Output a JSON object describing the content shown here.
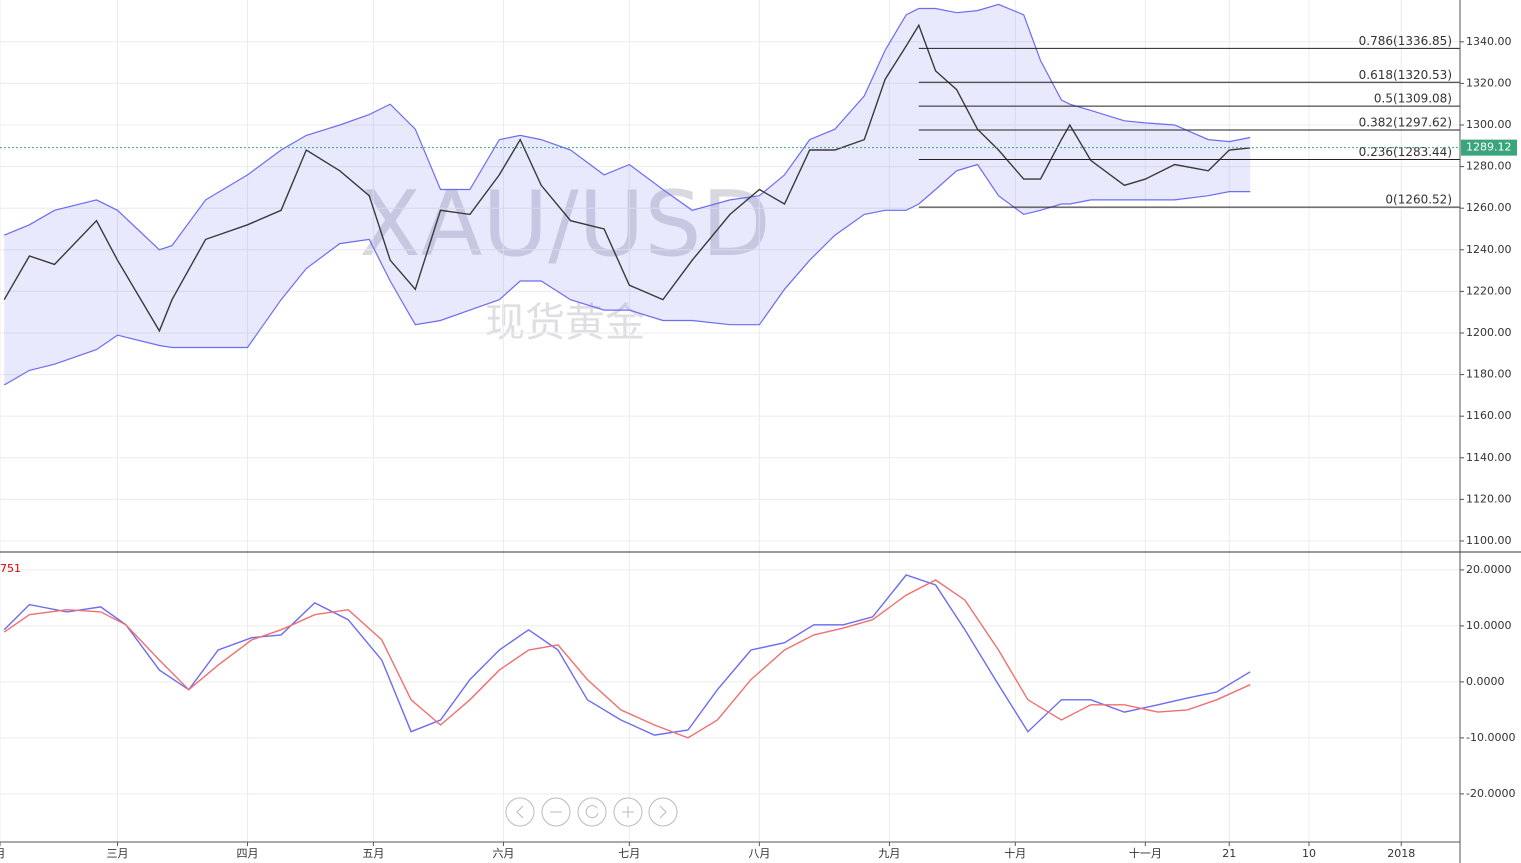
{
  "watermark": {
    "symbol": "XAU/USD",
    "name": "现货黄金"
  },
  "chart_data": [
    {
      "type": "line",
      "x": [
        33,
        39,
        45,
        55,
        60,
        70,
        73,
        81,
        91,
        99,
        105,
        113,
        120,
        125,
        131,
        137,
        144,
        151,
        156,
        161,
        168,
        176,
        182,
        190,
        197,
        206,
        213,
        219,
        225,
        231,
        238,
        243,
        248,
        251,
        255,
        260,
        265,
        270,
        276,
        280,
        285,
        287,
        292,
        300,
        305,
        312,
        320,
        325,
        330
      ],
      "xlim": [
        32,
        380
      ],
      "ylim": [
        1094.7,
        1360.1
      ],
      "yticks": [
        {
          "value": 1100,
          "label": "1100.00"
        },
        {
          "value": 1120,
          "label": "1120.00"
        },
        {
          "value": 1140,
          "label": "1140.00"
        },
        {
          "value": 1160,
          "label": "1160.00"
        },
        {
          "value": 1180,
          "label": "1180.00"
        },
        {
          "value": 1200,
          "label": "1200.00"
        },
        {
          "value": 1220,
          "label": "1220.00"
        },
        {
          "value": 1240,
          "label": "1240.00"
        },
        {
          "value": 1260,
          "label": "1260.00"
        },
        {
          "value": 1280,
          "label": "1280.00"
        },
        {
          "value": 1300,
          "label": "1300.00"
        },
        {
          "value": 1320,
          "label": "1320.00"
        },
        {
          "value": 1340,
          "label": "1340.00"
        }
      ],
      "grid": true,
      "series": [
        {
          "color": "#3a3a3a",
          "values": [
            1216,
            1237,
            1233,
            1254,
            1235,
            1201,
            1216,
            1245,
            1252,
            1259,
            1288,
            1278,
            1266,
            1235,
            1221,
            1259,
            1257,
            1276,
            1293,
            1271,
            1254,
            1250,
            1223,
            1216,
            1235,
            1257,
            1269,
            1262,
            1288,
            1288,
            1293,
            1322,
            1338,
            1348,
            1326,
            1317,
            1298,
            1288,
            1274,
            1274,
            1293,
            1300,
            1283,
            1271,
            1274,
            1281,
            1278,
            1288,
            1289
          ]
        }
      ],
      "bands": {
        "color": "#6c6cf2",
        "upper": [
          1247,
          1252,
          1259,
          1264,
          1259,
          1240,
          1242,
          1264,
          1276,
          1288,
          1295,
          1300,
          1305,
          1310,
          1298,
          1269,
          1269,
          1293,
          1295,
          1293,
          1288,
          1276,
          1281,
          1269,
          1259,
          1264,
          1266,
          1276,
          1293,
          1298,
          1314,
          1336,
          1353,
          1356,
          1356,
          1354,
          1355,
          1358,
          1353,
          1331,
          1312,
          1310,
          1307,
          1302,
          1301,
          1300,
          1293,
          1292,
          1294
        ],
        "lower": [
          1175,
          1182,
          1185,
          1192,
          1199,
          1194,
          1193,
          1193,
          1193,
          1216,
          1231,
          1243,
          1245,
          1225,
          1204,
          1206,
          1211,
          1216,
          1225,
          1225,
          1216,
          1211,
          1211,
          1206,
          1206,
          1204,
          1204,
          1221,
          1235,
          1247,
          1257,
          1259,
          1259,
          1262,
          1269,
          1278,
          1281,
          1266,
          1257,
          1259,
          1262,
          1262,
          1264,
          1264,
          1264,
          1264,
          1266,
          1268,
          1268
        ]
      },
      "levels": [
        {
          "value": 1336.85,
          "label": "0.786(1336.85)"
        },
        {
          "value": 1320.53,
          "label": "0.618(1320.53)"
        },
        {
          "value": 1309.08,
          "label": "0.5(1309.08)"
        },
        {
          "value": 1297.62,
          "label": "0.382(1297.62)"
        },
        {
          "value": 1283.44,
          "label": "0.236(1283.44)"
        },
        {
          "value": 1260.52,
          "label": "0(1260.52)"
        }
      ],
      "last_price": 1289.12,
      "last_price_color": "#3aa57a"
    },
    {
      "type": "line",
      "label": "751",
      "x": [
        33,
        39,
        48,
        56,
        62,
        70,
        77,
        84,
        92,
        99,
        107,
        115,
        123,
        130,
        137,
        144,
        151,
        158,
        165,
        172,
        180,
        188,
        196,
        203,
        211,
        219,
        226,
        233,
        240,
        248,
        255,
        262,
        270,
        277,
        285,
        292,
        300,
        308,
        315,
        322,
        330
      ],
      "xlim": [
        32,
        380
      ],
      "xticks": [
        {
          "value": 32,
          "label": "月"
        },
        {
          "value": 60,
          "label": "三月"
        },
        {
          "value": 91,
          "label": "四月"
        },
        {
          "value": 121,
          "label": "五月"
        },
        {
          "value": 152,
          "label": "六月"
        },
        {
          "value": 182,
          "label": "七月"
        },
        {
          "value": 213,
          "label": "八月"
        },
        {
          "value": 244,
          "label": "九月"
        },
        {
          "value": 274,
          "label": "十月"
        },
        {
          "value": 305,
          "label": "十一月"
        },
        {
          "value": 325,
          "label": "21"
        },
        {
          "value": 344,
          "label": "10"
        },
        {
          "value": 366,
          "label": "2018"
        }
      ],
      "ylim": [
        -28.6,
        23.2
      ],
      "yticks": [
        {
          "value": -20,
          "label": "-20.0000"
        },
        {
          "value": -10,
          "label": "-10.0000"
        },
        {
          "value": 0,
          "label": "0.0000"
        },
        {
          "value": 10,
          "label": "10.0000"
        },
        {
          "value": 20,
          "label": "20.0000"
        }
      ],
      "grid": true,
      "series": [
        {
          "color": "#6c6cf2",
          "values": [
            9.3,
            13.8,
            12.5,
            13.4,
            10.2,
            2.1,
            -1.4,
            5.7,
            7.9,
            8.4,
            14.1,
            11.1,
            3.9,
            -8.9,
            -6.8,
            0.4,
            5.7,
            9.3,
            5.7,
            -3.2,
            -6.8,
            -9.5,
            -8.6,
            -1.4,
            5.7,
            7.0,
            10.2,
            10.2,
            11.6,
            19.1,
            17.3,
            9.3,
            -0.5,
            -8.9,
            -3.2,
            -3.2,
            -5.4,
            -4.1,
            -2.9,
            -1.8,
            1.8
          ]
        },
        {
          "color": "#f07070",
          "values": [
            8.9,
            12.0,
            12.9,
            12.5,
            10.2,
            3.9,
            -1.4,
            3.0,
            7.5,
            9.3,
            12.0,
            12.9,
            7.5,
            -3.2,
            -7.7,
            -3.2,
            2.1,
            5.7,
            6.6,
            0.4,
            -5.0,
            -7.7,
            -10.0,
            -6.8,
            0.4,
            5.7,
            8.4,
            9.6,
            11.1,
            15.5,
            18.2,
            14.6,
            5.7,
            -3.2,
            -6.8,
            -4.1,
            -4.1,
            -5.4,
            -5.0,
            -3.2,
            -0.5
          ]
        }
      ]
    }
  ]
}
